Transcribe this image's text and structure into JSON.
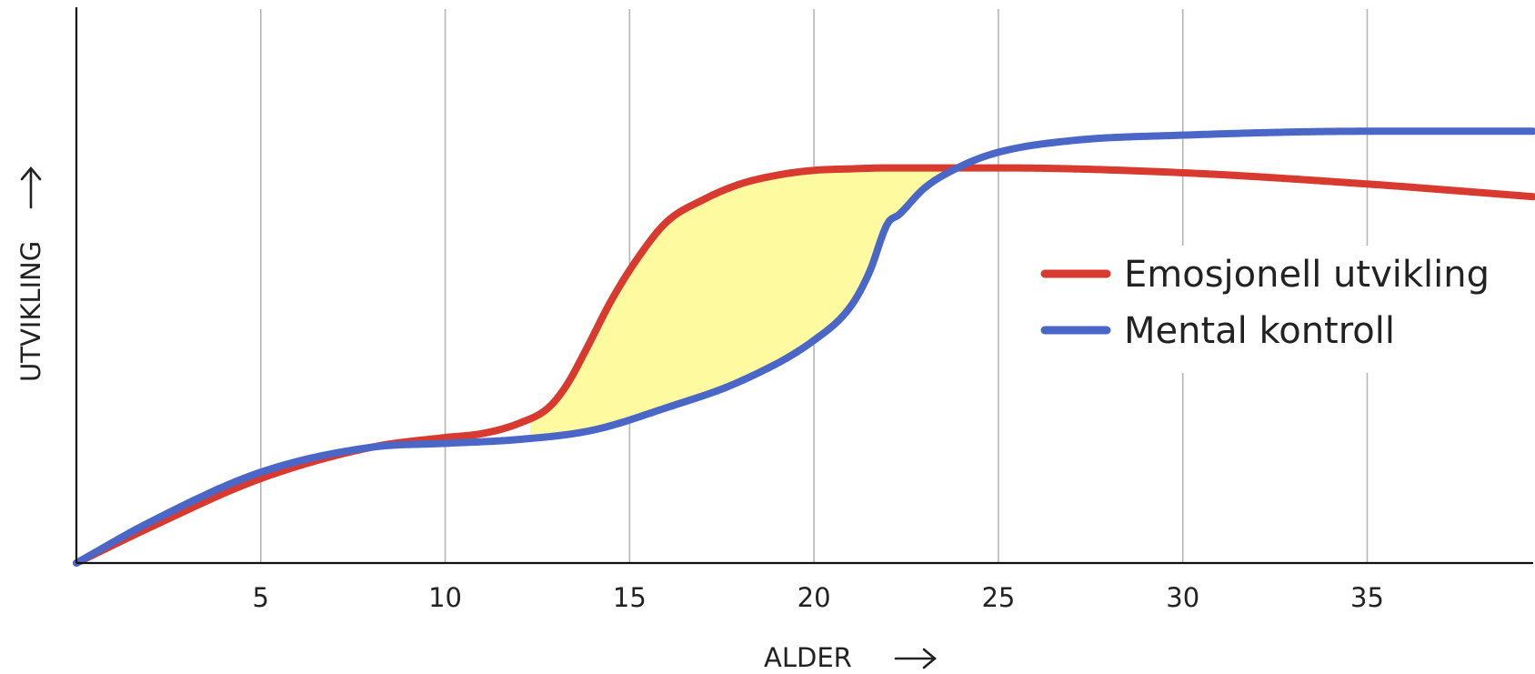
{
  "chart_data": {
    "type": "line",
    "xlabel": "ALDER",
    "ylabel": "UTVIKLING",
    "xlim": [
      0,
      39.5
    ],
    "ylim": [
      0,
      100
    ],
    "x_ticks": [
      5,
      10,
      15,
      20,
      25,
      30,
      35
    ],
    "x_tick_labels": [
      "5",
      "10",
      "15",
      "20",
      "25",
      "30",
      "35"
    ],
    "grid": "vertical",
    "y_ticks_shown": false,
    "legend_placement": "right",
    "shaded_region": {
      "between": [
        "Emosjonell utvikling",
        "Mental kontroll"
      ],
      "x_range": [
        12.3,
        23.5
      ],
      "color": "#fdfaa0"
    },
    "series": [
      {
        "name": "Emosjonell utvikling",
        "color": "#d93a2f",
        "x": [
          0,
          2,
          5,
          8,
          10,
          11,
          12,
          12.8,
          13.3,
          13.8,
          14.5,
          15.2,
          16,
          17,
          18,
          19,
          20,
          21,
          22,
          23,
          25,
          30,
          35,
          39.5
        ],
        "y": [
          0,
          7.3,
          17.3,
          23.7,
          25.7,
          26.5,
          28.6,
          31.8,
          36.5,
          43.4,
          53.7,
          62.2,
          69.8,
          74.4,
          77.6,
          79.4,
          80.4,
          80.7,
          80.9,
          80.9,
          80.9,
          79.9,
          77.6,
          75
        ]
      },
      {
        "name": "Mental kontroll",
        "color": "#4a67c7",
        "x": [
          0,
          2,
          5,
          8,
          10,
          12,
          14,
          16,
          18,
          20,
          21,
          21.5,
          22,
          22.3,
          23,
          24,
          25,
          27,
          30,
          35,
          39.5
        ],
        "y": [
          0,
          8.4,
          18.6,
          23.7,
          24.5,
          25.3,
          27.2,
          31.8,
          37.2,
          45.6,
          52.6,
          59.5,
          69.6,
          71.3,
          76.8,
          81.3,
          84.1,
          86.5,
          87.6,
          88.4,
          88.4
        ]
      }
    ]
  }
}
